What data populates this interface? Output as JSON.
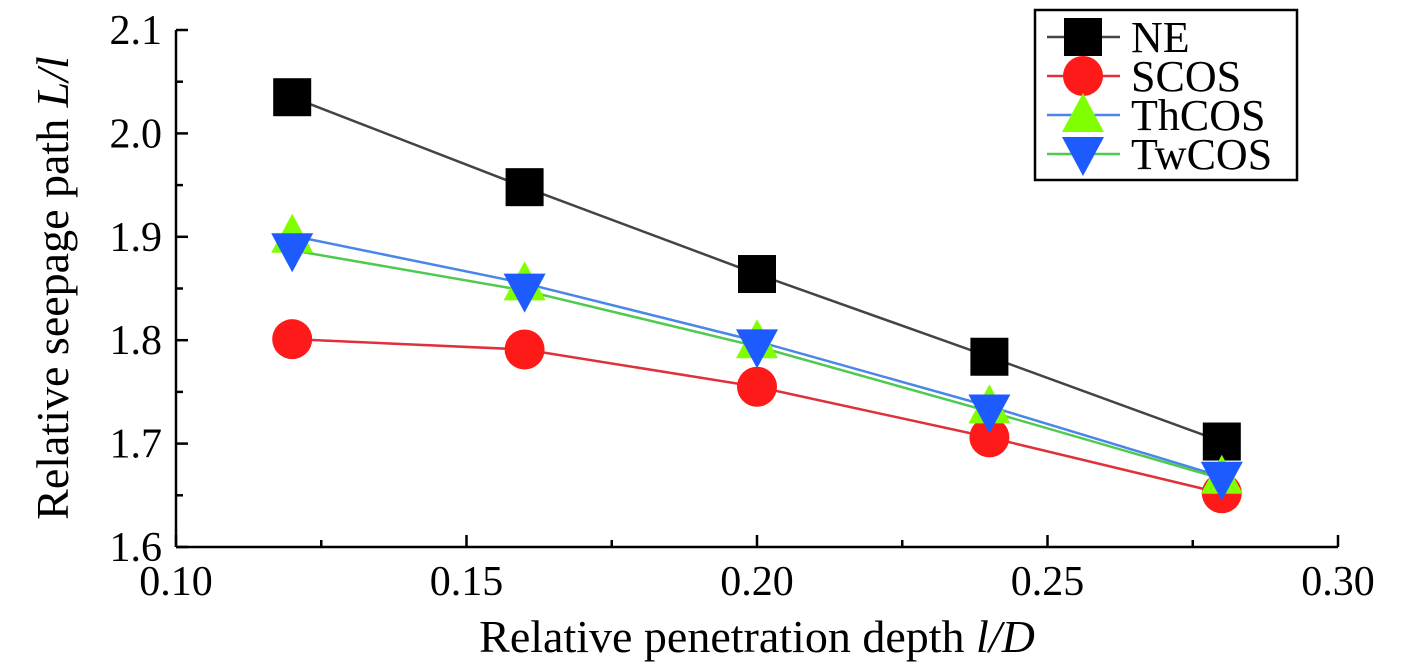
{
  "chart_data": {
    "type": "line",
    "xlabel": "Relative penetration depth",
    "xlabel_italic": "l/D",
    "ylabel": "Relative seepage path",
    "ylabel_italic": "L/l",
    "xlim": [
      0.1,
      0.3
    ],
    "ylim": [
      1.6,
      2.1
    ],
    "x_ticks": [
      "0.10",
      "0.15",
      "0.20",
      "0.25",
      "0.30"
    ],
    "y_ticks": [
      "1.6",
      "1.7",
      "1.8",
      "1.9",
      "2.0",
      "2.1"
    ],
    "x": [
      0.12,
      0.16,
      0.2,
      0.24,
      0.28
    ],
    "legend_position": "top-right",
    "series": [
      {
        "name": "NE",
        "marker": "square",
        "marker_color": "#000000",
        "line_color": "#444444",
        "values": [
          2.035,
          1.948,
          1.864,
          1.784,
          1.702
        ]
      },
      {
        "name": "SCOS",
        "marker": "circle",
        "marker_color": "#ff1a1a",
        "line_color": "#e0303a",
        "values": [
          1.801,
          1.791,
          1.755,
          1.706,
          1.652
        ]
      },
      {
        "name": "ThCOS",
        "marker": "triangle-up",
        "marker_color": "#7fff00",
        "line_color": "#4a86e8",
        "values": [
          1.901,
          1.855,
          1.799,
          1.736,
          1.668
        ]
      },
      {
        "name": "TwCOS",
        "marker": "triangle-down",
        "marker_color": "#1e5bff",
        "line_color": "#4fc94f",
        "values": [
          1.887,
          1.848,
          1.794,
          1.731,
          1.666
        ]
      }
    ]
  }
}
